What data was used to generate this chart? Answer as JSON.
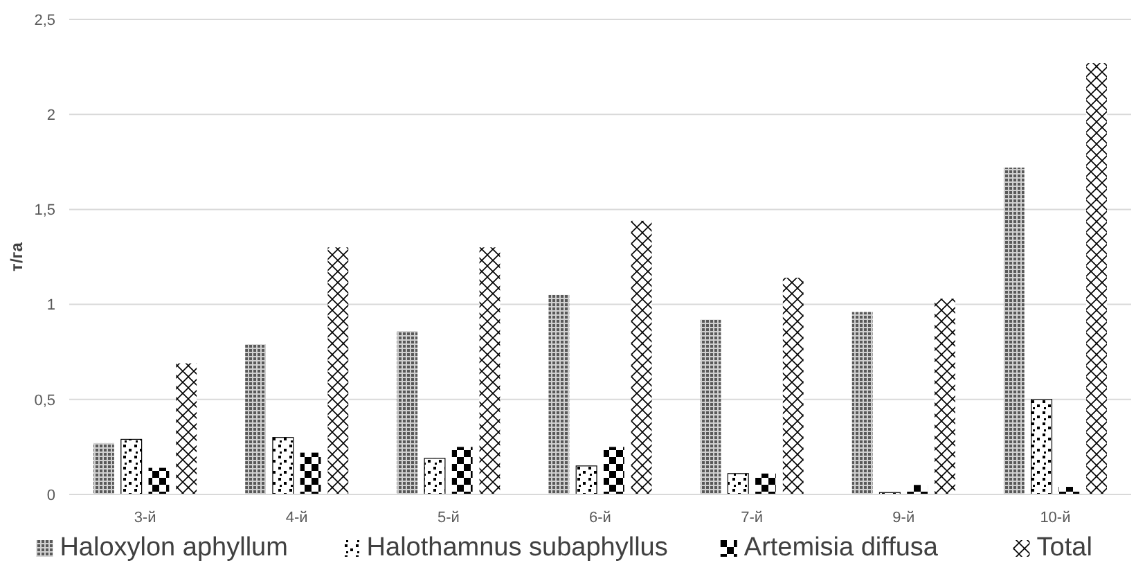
{
  "chart_data": {
    "type": "bar",
    "ylabel": "т/га",
    "categories": [
      "3-й",
      "4-й",
      "5-й",
      "6-й",
      "7-й",
      "9-й",
      "10-й"
    ],
    "series": [
      {
        "name": "Haloxylon aphyllum",
        "color": "#595959",
        "values": [
          0.27,
          0.79,
          0.86,
          1.05,
          0.92,
          0.96,
          1.72
        ]
      },
      {
        "name": "Halothamnus subaphyllus",
        "color": "#000000",
        "values": [
          0.29,
          0.3,
          0.19,
          0.15,
          0.11,
          0.01,
          0.5
        ]
      },
      {
        "name": "Artemisia diffusa",
        "color": "#000000",
        "values": [
          0.14,
          0.22,
          0.25,
          0.25,
          0.11,
          0.05,
          0.04
        ]
      },
      {
        "name": "Total",
        "color": "#000000",
        "values": [
          0.69,
          1.3,
          1.3,
          1.44,
          1.14,
          1.03,
          2.27
        ]
      }
    ],
    "ylim": [
      0,
      2.5
    ],
    "yticks": [
      0,
      {
        "value": 0.5,
        "label": "0,5"
      },
      1,
      {
        "value": 1.5,
        "label": "1,5"
      },
      2,
      {
        "value": 2.5,
        "label": "2,5"
      }
    ],
    "grid": "y",
    "legend": "bottom"
  }
}
